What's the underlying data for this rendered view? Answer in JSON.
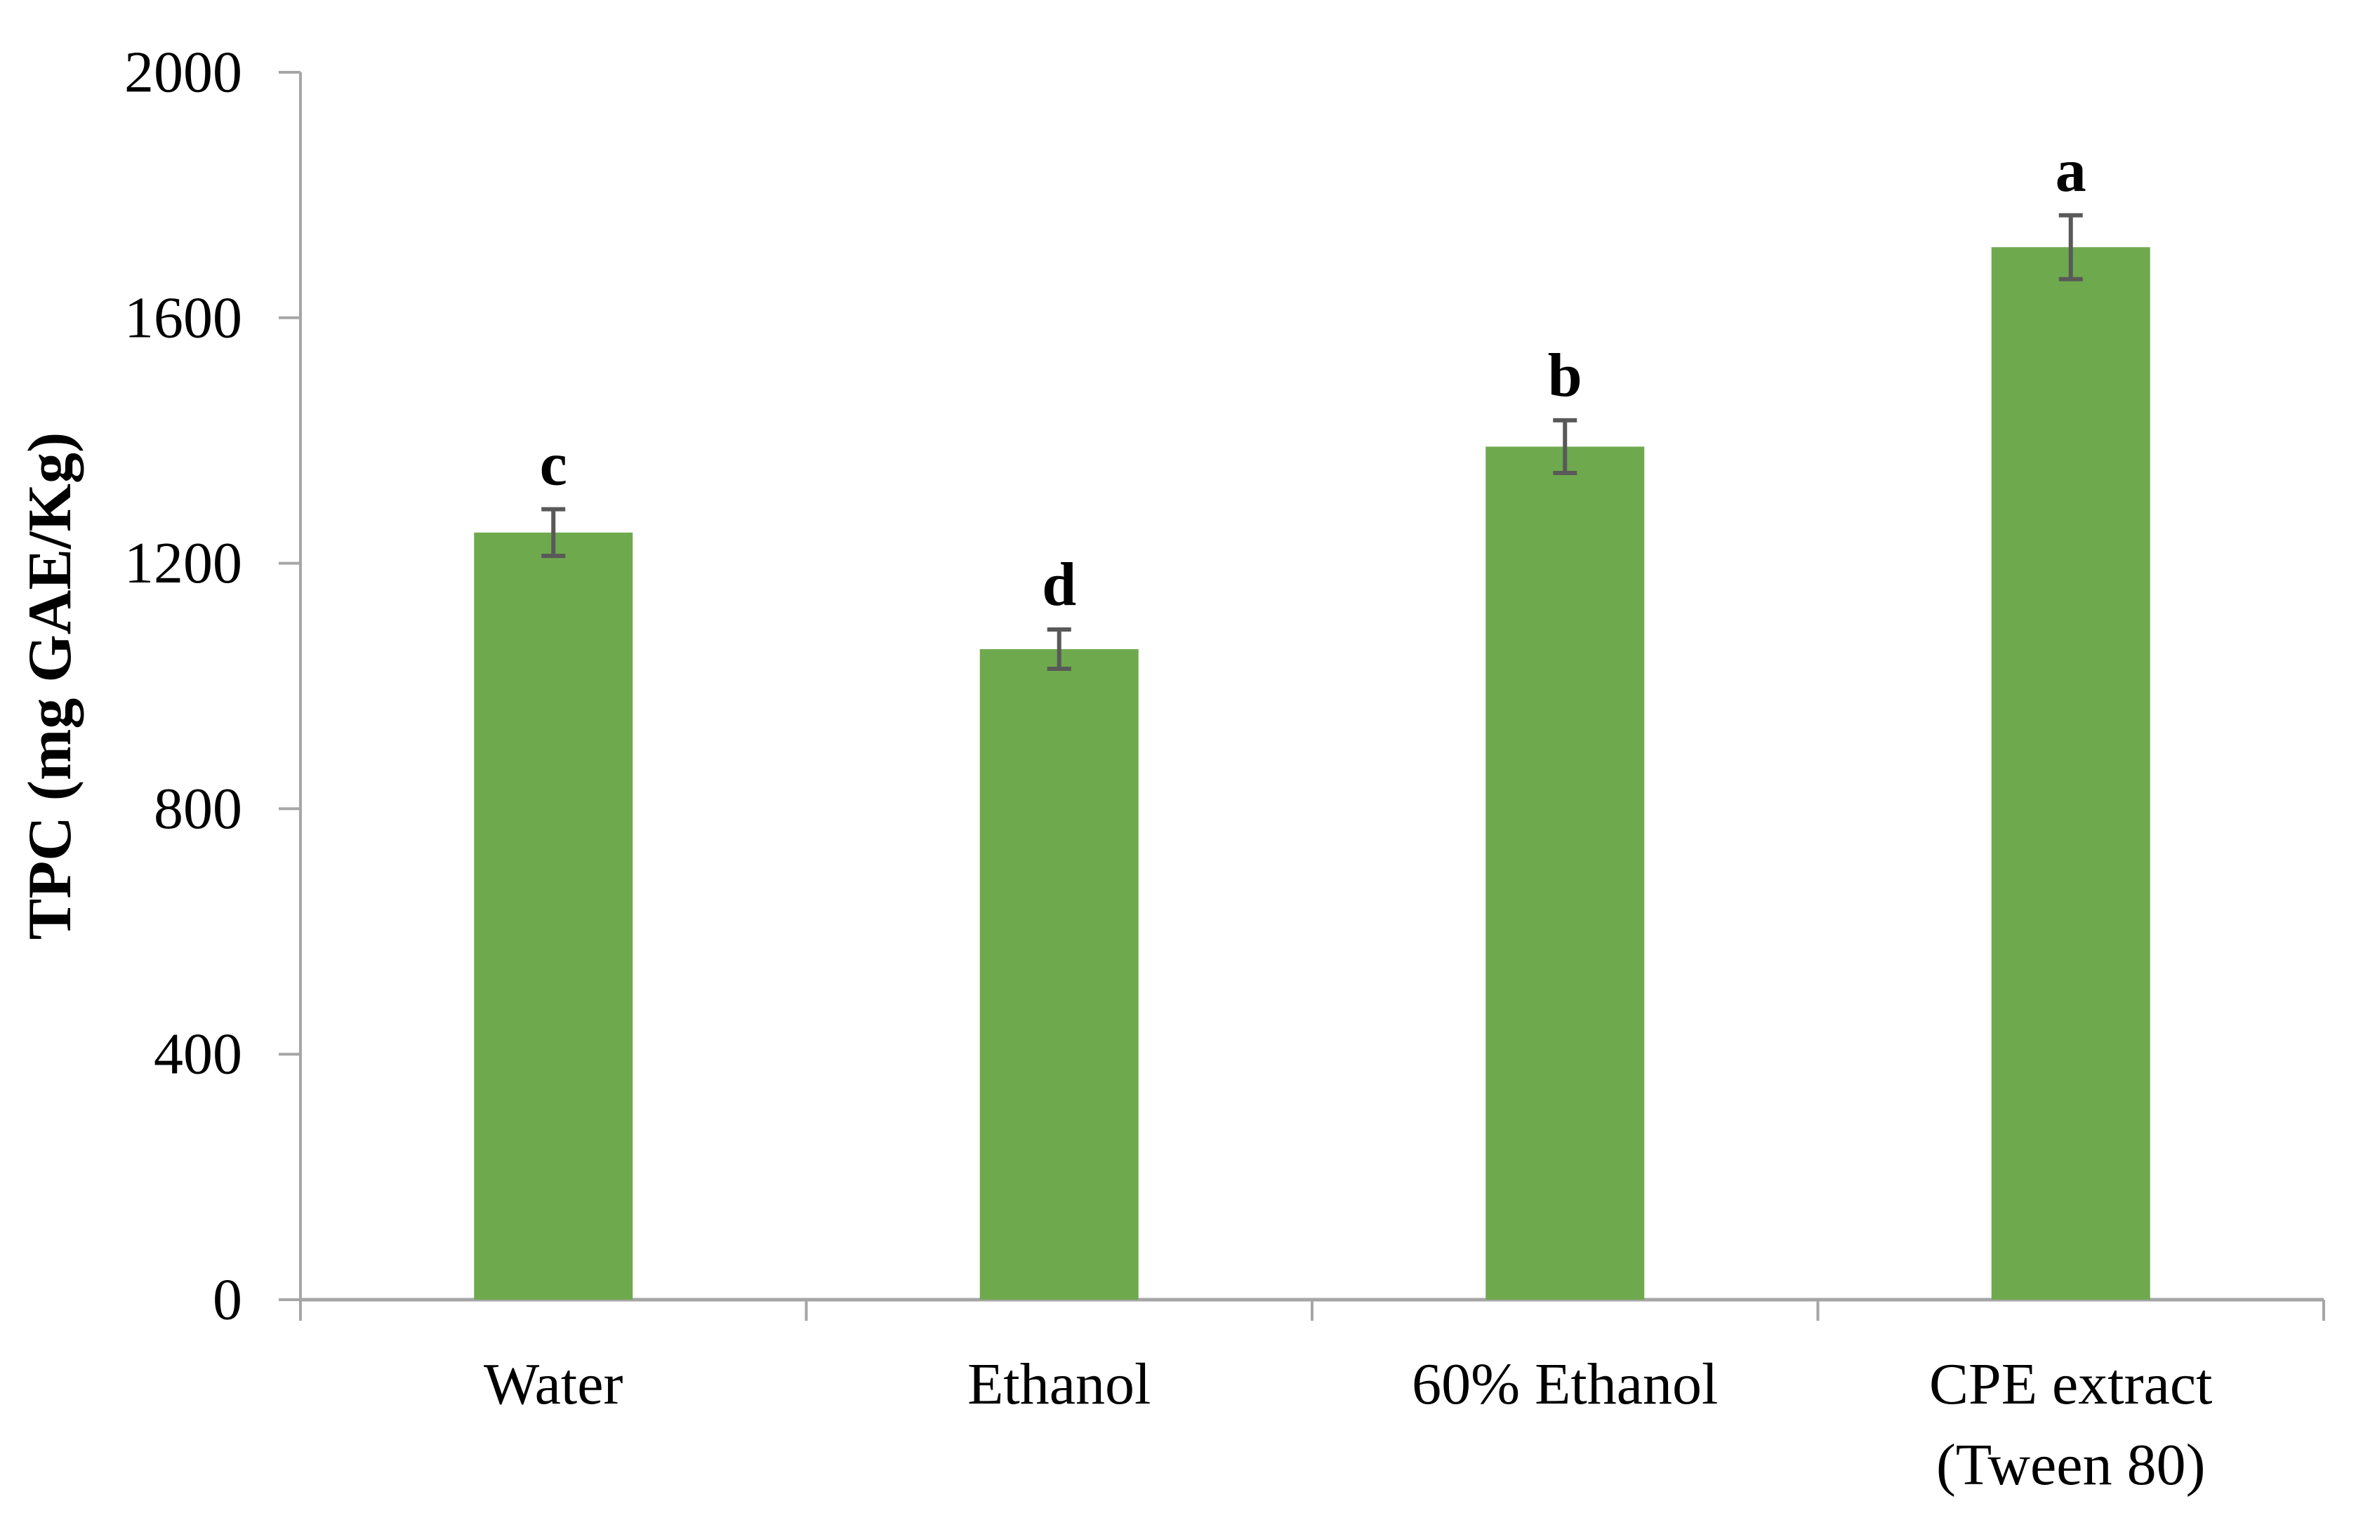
{
  "chart_data": {
    "type": "bar",
    "title": "",
    "xlabel": "",
    "ylabel": "TPC (mg GAE/Kg)",
    "categories": [
      "Water",
      "Ethanol",
      "60% Ethanol",
      "CPE extract (Tween 80)"
    ],
    "category_label_lines": [
      [
        "Water"
      ],
      [
        "Ethanol"
      ],
      [
        "60% Ethanol"
      ],
      [
        "CPE extract",
        "(Tween 80)"
      ]
    ],
    "series": [
      {
        "name": "TPC",
        "values": [
          1250,
          1060,
          1390,
          1715
        ],
        "error_bars": [
          38,
          32,
          43,
          52
        ],
        "significance_letters": [
          "c",
          "d",
          "b",
          "a"
        ]
      }
    ],
    "ylim": [
      0,
      2000
    ],
    "yticks": [
      0,
      400,
      800,
      1200,
      1600,
      2000
    ],
    "grid": false,
    "legend_position": "none",
    "colors": {
      "bar_fill": "#6fa94e",
      "error_bar": "#595959",
      "axis_line": "#a6a6a6",
      "text": "#000000",
      "background": "#ffffff"
    }
  }
}
